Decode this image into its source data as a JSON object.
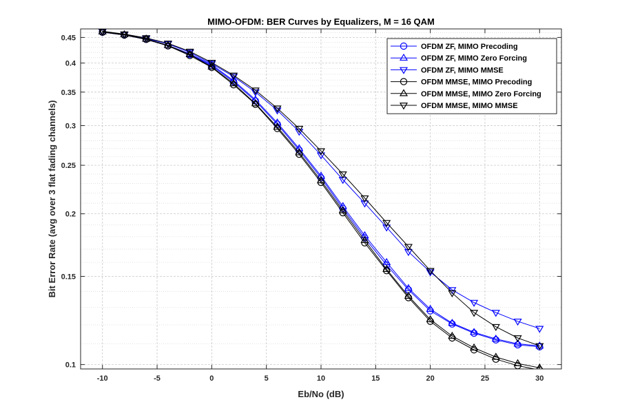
{
  "chart_data": {
    "type": "line",
    "title": "MIMO-OFDM: BER Curves by Equalizers, M = 16 QAM",
    "xlabel": "Eb/No (dB)",
    "ylabel": "Bit Error Rate (avg over 3 flat fading channels)",
    "xlim": [
      -12,
      32
    ],
    "ylim": [
      0.098,
      0.468
    ],
    "yscale": "log",
    "xticks": [
      -10,
      -5,
      0,
      5,
      10,
      15,
      20,
      25,
      30
    ],
    "yticks": [
      0.1,
      0.15,
      0.2,
      0.25,
      0.3,
      0.35,
      0.4,
      0.45
    ],
    "ytick_labels": [
      "0.1",
      "0.15",
      "0.2",
      "0.25",
      "0.3",
      "0.35",
      "0.4",
      "0.45"
    ],
    "yminor": [
      0.11,
      0.12,
      0.13,
      0.14,
      0.16,
      0.17,
      0.18,
      0.19,
      0.21,
      0.22,
      0.23,
      0.24,
      0.26,
      0.27,
      0.28,
      0.29,
      0.31,
      0.32,
      0.33,
      0.34,
      0.36,
      0.37,
      0.38,
      0.39,
      0.41,
      0.42,
      0.43,
      0.44,
      0.46
    ],
    "grid": true,
    "legend_position": "top-right",
    "x": [
      -10,
      -8,
      -6,
      -4,
      -2,
      0,
      2,
      4,
      6,
      8,
      10,
      12,
      14,
      16,
      18,
      20,
      22,
      24,
      26,
      28,
      30
    ],
    "series": [
      {
        "name": "OFDM ZF, MIMO Precoding",
        "color": "#0000ff",
        "marker": "circle",
        "values": [
          0.461,
          0.455,
          0.446,
          0.433,
          0.416,
          0.395,
          0.367,
          0.336,
          0.302,
          0.268,
          0.236,
          0.205,
          0.179,
          0.158,
          0.141,
          0.128,
          0.1205,
          0.1155,
          0.112,
          0.1095,
          0.1085
        ]
      },
      {
        "name": "OFDM ZF, MIMO Zero Forcing",
        "color": "#0000ff",
        "marker": "triangle-up",
        "values": [
          0.462,
          0.456,
          0.447,
          0.434,
          0.417,
          0.397,
          0.369,
          0.338,
          0.304,
          0.27,
          0.238,
          0.207,
          0.181,
          0.16,
          0.142,
          0.129,
          0.121,
          0.116,
          0.1125,
          0.11,
          0.109
        ]
      },
      {
        "name": "OFDM ZF, MIMO MMSE",
        "color": "#0000ff",
        "marker": "triangle-down",
        "values": [
          0.462,
          0.456,
          0.448,
          0.437,
          0.42,
          0.399,
          0.376,
          0.35,
          0.322,
          0.292,
          0.262,
          0.234,
          0.21,
          0.188,
          0.168,
          0.153,
          0.141,
          0.133,
          0.127,
          0.122,
          0.118
        ]
      },
      {
        "name": "OFDM MMSE, MIMO Precoding",
        "color": "#000000",
        "marker": "circle",
        "values": [
          0.461,
          0.455,
          0.446,
          0.433,
          0.414,
          0.392,
          0.362,
          0.331,
          0.296,
          0.263,
          0.231,
          0.201,
          0.175,
          0.154,
          0.136,
          0.122,
          0.113,
          0.107,
          0.1025,
          0.0995,
          0.0975
        ]
      },
      {
        "name": "OFDM MMSE, MIMO Zero Forcing",
        "color": "#000000",
        "marker": "triangle-up",
        "values": [
          0.462,
          0.456,
          0.447,
          0.434,
          0.416,
          0.393,
          0.364,
          0.332,
          0.298,
          0.265,
          0.233,
          0.203,
          0.177,
          0.155,
          0.137,
          0.123,
          0.114,
          0.108,
          0.1035,
          0.1005,
          0.0985
        ]
      },
      {
        "name": "OFDM MMSE, MIMO MMSE",
        "color": "#000000",
        "marker": "triangle-down",
        "values": [
          0.463,
          0.457,
          0.449,
          0.438,
          0.422,
          0.401,
          0.378,
          0.353,
          0.325,
          0.296,
          0.267,
          0.24,
          0.215,
          0.192,
          0.172,
          0.154,
          0.139,
          0.127,
          0.119,
          0.113,
          0.109
        ]
      }
    ]
  }
}
